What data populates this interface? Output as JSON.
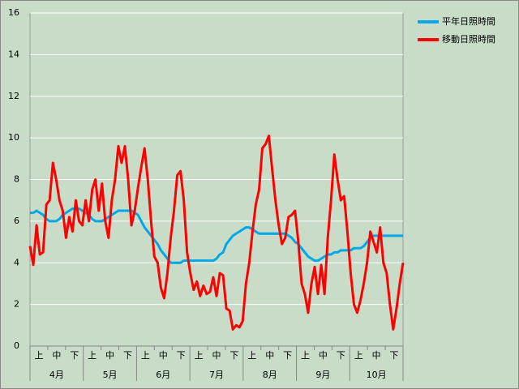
{
  "chart_data": {
    "type": "line",
    "ylim": [
      0,
      16
    ],
    "yticks": [
      0,
      2,
      4,
      6,
      8,
      10,
      12,
      14,
      16
    ],
    "grid": true,
    "legend": "top-right",
    "x_axis": {
      "labels": [
        "上",
        "中",
        "下",
        "上",
        "中",
        "下",
        "上",
        "中",
        "下",
        "上",
        "中",
        "下",
        "上",
        "中",
        "下",
        "上",
        "中",
        "下",
        "上",
        "中",
        "下"
      ],
      "groups": [
        "4月",
        "5月",
        "6月",
        "7月",
        "8月",
        "9月",
        "10月"
      ]
    },
    "series": [
      {
        "name": "平年日照時間",
        "color": "#00a8e8",
        "values": [
          6.4,
          6.4,
          6.5,
          6.4,
          6.3,
          6.1,
          6.0,
          6.0,
          6.0,
          6.1,
          6.3,
          6.4,
          6.5,
          6.6,
          6.6,
          6.6,
          6.5,
          6.4,
          6.3,
          6.1,
          6.0,
          6.0,
          6.0,
          6.1,
          6.2,
          6.3,
          6.4,
          6.5,
          6.5,
          6.5,
          6.5,
          6.5,
          6.4,
          6.3,
          6.0,
          5.7,
          5.5,
          5.3,
          5.1,
          4.9,
          4.6,
          4.4,
          4.2,
          4.0,
          4.0,
          4.0,
          4.0,
          4.1,
          4.1,
          4.1,
          4.1,
          4.1,
          4.1,
          4.1,
          4.1,
          4.1,
          4.1,
          4.2,
          4.4,
          4.5,
          4.9,
          5.1,
          5.3,
          5.4,
          5.5,
          5.6,
          5.7,
          5.7,
          5.6,
          5.5,
          5.4,
          5.4,
          5.4,
          5.4,
          5.4,
          5.4,
          5.4,
          5.4,
          5.4,
          5.3,
          5.2,
          5.0,
          4.9,
          4.7,
          4.5,
          4.3,
          4.2,
          4.1,
          4.1,
          4.2,
          4.3,
          4.4,
          4.4,
          4.5,
          4.5,
          4.6,
          4.6,
          4.6,
          4.6,
          4.7,
          4.7,
          4.7,
          4.8,
          5.0,
          5.2,
          5.3,
          5.3,
          5.3,
          5.3,
          5.3,
          5.3,
          5.3,
          5.3,
          5.3,
          5.3
        ]
      },
      {
        "name": "移動日照時間",
        "color": "#ff0000",
        "values": [
          4.8,
          3.9,
          5.8,
          4.4,
          4.5,
          6.8,
          7.0,
          8.8,
          8.0,
          7.0,
          6.5,
          5.2,
          6.2,
          5.5,
          7.0,
          6.0,
          5.8,
          7.0,
          6.0,
          7.5,
          8.0,
          6.5,
          7.8,
          6.0,
          5.2,
          7.0,
          8.0,
          9.6,
          8.8,
          9.6,
          8.0,
          5.8,
          6.5,
          7.6,
          8.6,
          9.5,
          8.0,
          6.0,
          4.3,
          4.0,
          2.8,
          2.3,
          3.5,
          5.2,
          6.5,
          8.2,
          8.4,
          7.0,
          4.5,
          3.5,
          2.7,
          3.1,
          2.4,
          2.9,
          2.5,
          2.6,
          3.3,
          2.4,
          3.5,
          3.4,
          1.8,
          1.7,
          0.8,
          1.0,
          0.9,
          1.2,
          3.0,
          4.0,
          5.5,
          6.8,
          7.5,
          9.5,
          9.7,
          10.1,
          8.5,
          7.0,
          5.8,
          4.9,
          5.2,
          6.2,
          6.3,
          6.5,
          5.0,
          3.0,
          2.5,
          1.6,
          3.0,
          3.8,
          2.5,
          3.9,
          2.5,
          5.2,
          7.0,
          9.2,
          8.0,
          7.0,
          7.2,
          5.5,
          3.5,
          2.0,
          1.6,
          2.2,
          3.0,
          4.0,
          5.5,
          5.0,
          4.5,
          5.7,
          4.0,
          3.5,
          2.0,
          0.8,
          1.8,
          3.0,
          4.0
        ]
      }
    ]
  }
}
